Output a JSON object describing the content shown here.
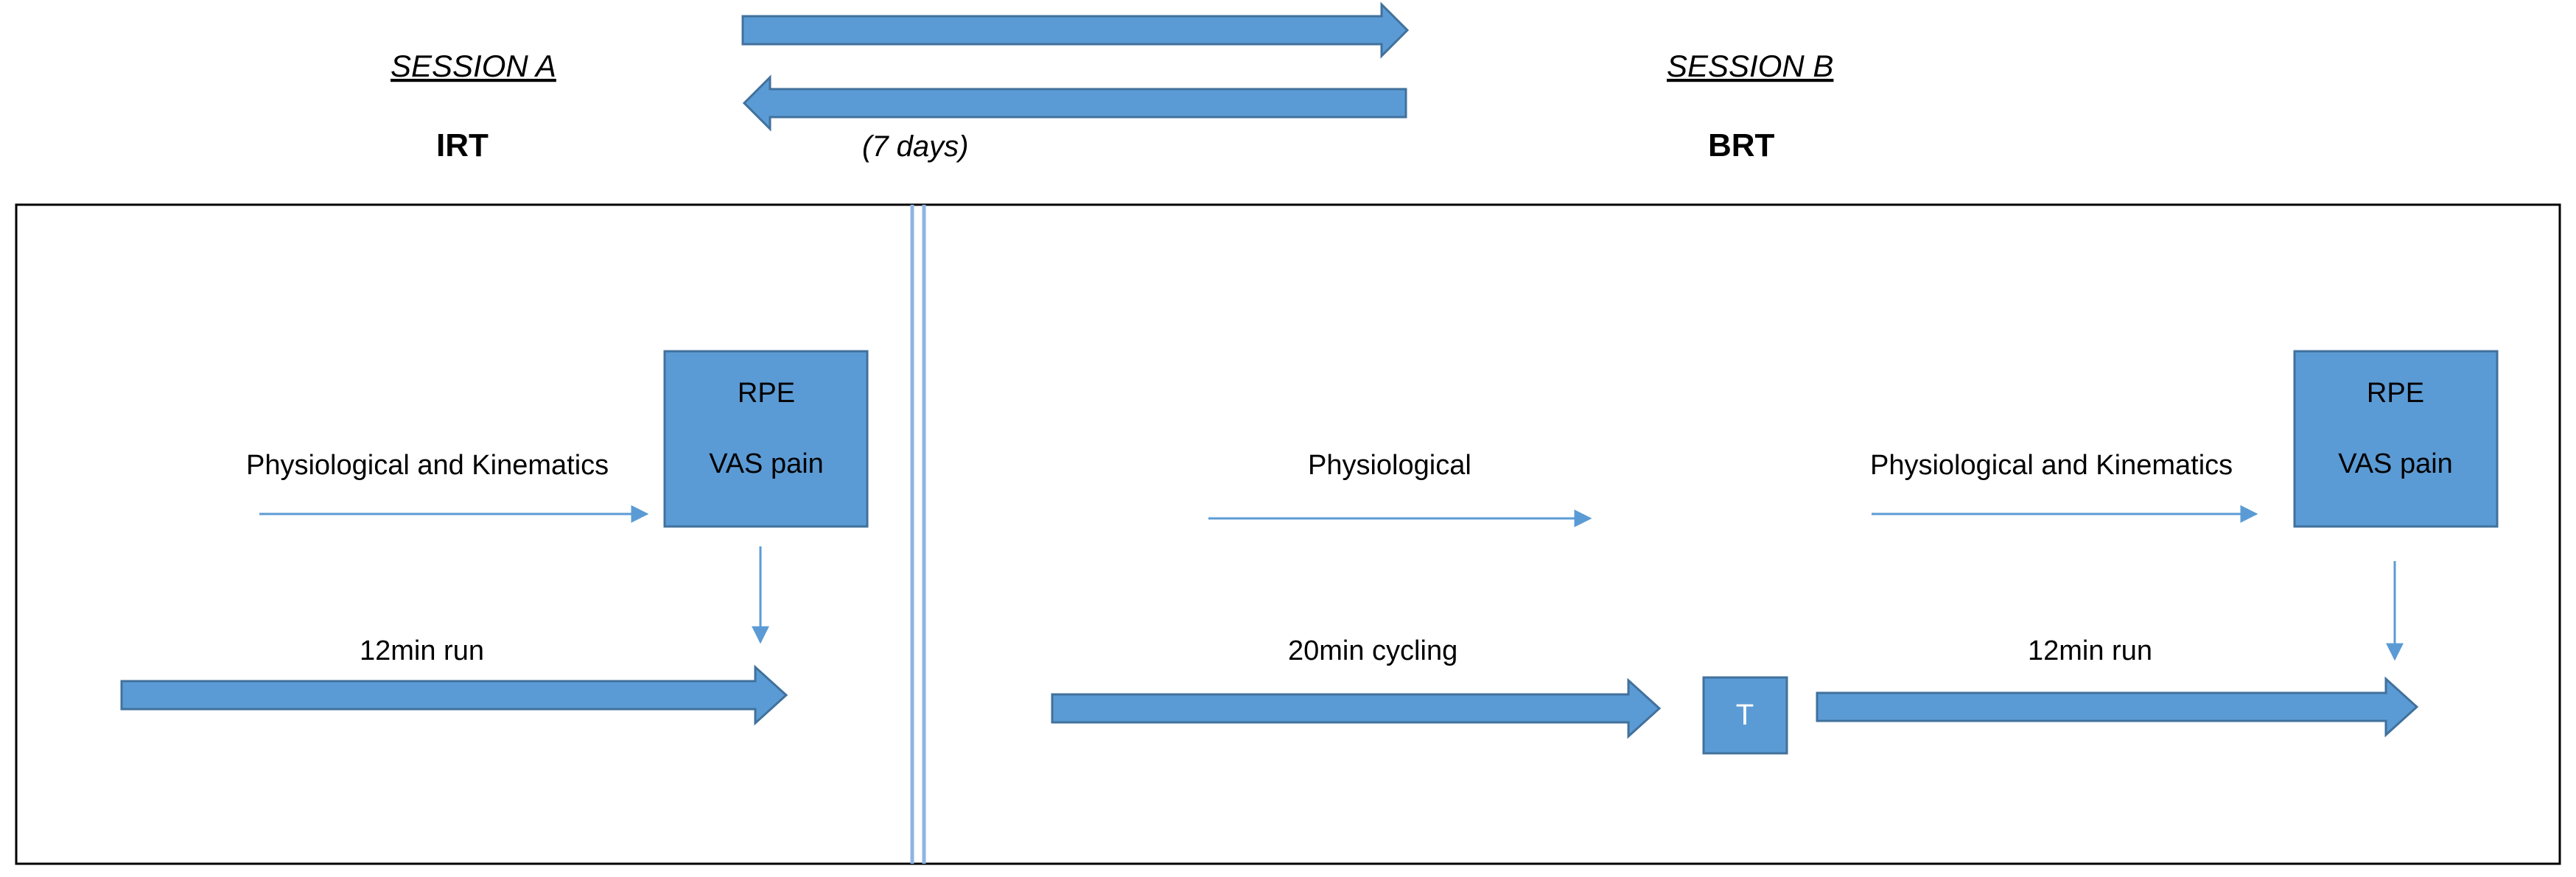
{
  "header": {
    "session_a_title": "SESSION A",
    "session_b_title": "SESSION B",
    "condition_a": "IRT",
    "condition_b": "BRT",
    "interval_label": "(7 days)"
  },
  "session_a": {
    "measure_label": "Physiological and Kinematics",
    "box_line1": "RPE",
    "box_line2": "VAS pain",
    "activity_label": "12min run"
  },
  "session_b": {
    "measure1_label": "Physiological",
    "measure2_label": "Physiological and Kinematics",
    "box_line1": "RPE",
    "box_line2": "VAS pain",
    "transition_label": "T",
    "activity1_label": "20min cycling",
    "activity2_label": "12min run"
  },
  "colors": {
    "arrow_fill": "#5B9BD5",
    "arrow_stroke": "#41719C",
    "box_fill": "#5B9BD5",
    "thin_line": "#5B9BD5",
    "frame": "#000000"
  }
}
